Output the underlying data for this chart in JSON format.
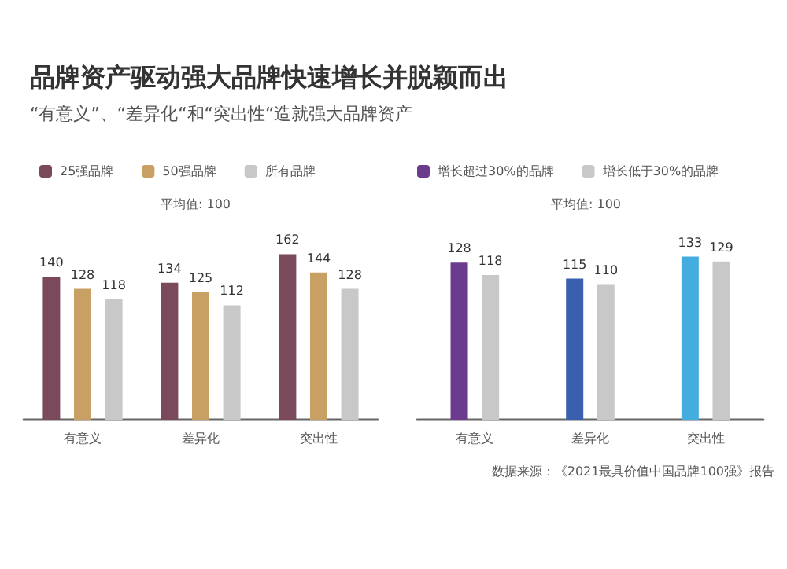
{
  "chart_data": [
    {
      "type": "bar",
      "title": "品牌资产驱动强大品牌快速增长并脱颖而出",
      "subtitle": "“有意义”、“差异化“和“突出性“造就强大品牌资产",
      "annotations": [
        "平均值: 100",
        "数据来源：《2021最具价值中国品牌100强》报告"
      ],
      "categories": [
        "有意义",
        "差异化",
        "突出性"
      ],
      "series": [
        {
          "name": "25强品牌",
          "color": "#7a4a5c",
          "values": [
            140,
            134,
            162
          ]
        },
        {
          "name": "50强品牌",
          "color": "#c9a063",
          "values": [
            128,
            125,
            144
          ]
        },
        {
          "name": "所有品牌",
          "color": "#c8c8c8",
          "values": [
            118,
            112,
            128
          ]
        }
      ],
      "data_labels": true,
      "legend": "top",
      "grid": false
    },
    {
      "type": "bar",
      "annotations": [
        "平均值: 100"
      ],
      "categories": [
        "有意义",
        "差异化",
        "突出性"
      ],
      "series": [
        {
          "name": "增长超过30%的品牌",
          "color": "#6b3b8f",
          "colors": [
            "#6b3b8f",
            "#3a5fae",
            "#45ace0"
          ],
          "values": [
            128,
            115,
            133
          ]
        },
        {
          "name": "增长低于30%的品牌",
          "color": "#c8c8c8",
          "values": [
            118,
            110,
            129
          ]
        }
      ],
      "data_labels": true,
      "legend": "top",
      "grid": false
    }
  ]
}
